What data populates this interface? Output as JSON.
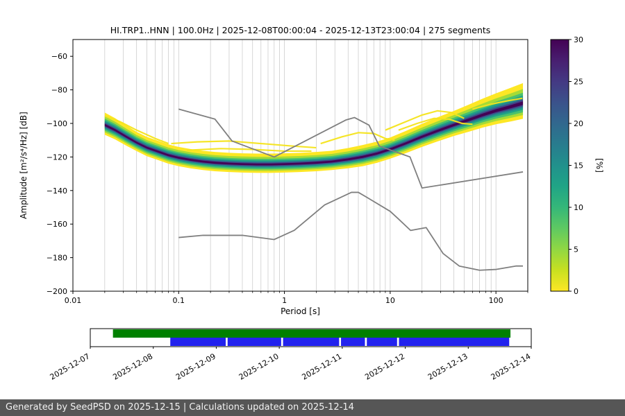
{
  "window": {
    "title": "HI.TRP1..HNN | 100.0Hz | 2025-12-08T00:00:04 - 2025-12-13T23:00:04 | 275 segments"
  },
  "footer": {
    "text": "Generated by SeedPSD on 2025-12-15 | Calculations updated on 2025-12-14"
  },
  "chart_data": {
    "type": "heatmap",
    "title": "HI.TRP1..HNN | 100.0Hz | 2025-12-08T00:00:04 - 2025-12-13T23:00:04 | 275 segments",
    "xlabel": "Period [s]",
    "ylabel": "Amplitude [m²/s⁴/Hz] [dB]",
    "xscale": "log",
    "xlim": [
      0.01,
      200
    ],
    "ylim": [
      -200,
      -50
    ],
    "xticks": [
      0.01,
      0.1,
      1,
      10,
      100
    ],
    "xtick_labels": [
      "0.01",
      "0.1",
      "1",
      "10",
      "100"
    ],
    "yticks": [
      -60,
      -80,
      -100,
      -120,
      -140,
      -160,
      -180,
      -200
    ],
    "grid": "vertical-log",
    "colorbar": {
      "label": "[%]",
      "min": 0,
      "max": 30,
      "ticks": [
        0,
        5,
        10,
        15,
        20,
        25,
        30
      ],
      "gradient": [
        "#fde725",
        "#c8e020",
        "#90d743",
        "#5ec962",
        "#35b779",
        "#20a486",
        "#21918c",
        "#287c8e",
        "#31688e",
        "#3b528b",
        "#443983",
        "#481f70",
        "#440154"
      ]
    },
    "ppsd": {
      "periods": [
        0.02,
        0.025,
        0.032,
        0.04,
        0.05,
        0.065,
        0.08,
        0.1,
        0.13,
        0.17,
        0.22,
        0.3,
        0.4,
        0.55,
        0.75,
        1.0,
        1.4,
        2.0,
        2.8,
        4.0,
        5.5,
        7.5,
        10,
        14,
        20,
        28,
        40,
        55,
        75,
        100,
        140,
        180
      ],
      "mode_db": [
        -101,
        -104,
        -108,
        -111.5,
        -114.5,
        -117,
        -119,
        -120.5,
        -121.8,
        -122.8,
        -123.5,
        -124,
        -124.3,
        -124.5,
        -124.5,
        -124.3,
        -124,
        -123.5,
        -122.8,
        -121.5,
        -120,
        -118,
        -115.5,
        -112,
        -108,
        -104.5,
        -101,
        -98,
        -95,
        -92.5,
        -90,
        -88
      ],
      "spread": [
        1.15,
        1.1,
        1.05,
        1.0,
        1.0,
        1.0,
        1.0,
        1.0,
        1.0,
        1.0,
        1.0,
        1.0,
        1.0,
        1.0,
        1.0,
        1.0,
        1.0,
        1.0,
        1.0,
        1.05,
        1.1,
        1.1,
        1.1,
        1.15,
        1.2,
        1.25,
        1.3,
        1.4,
        1.5,
        1.6,
        1.75,
        1.85
      ],
      "layers": [
        {
          "color": "#fde725",
          "top": 6.5,
          "bottom": 5.0
        },
        {
          "color": "#a5db36",
          "top": 4.6,
          "bottom": 3.8
        },
        {
          "color": "#4ac16d",
          "top": 3.4,
          "bottom": 2.9
        },
        {
          "color": "#1fa187",
          "top": 2.5,
          "bottom": 2.1
        },
        {
          "color": "#277f8e",
          "top": 1.8,
          "bottom": 1.5
        },
        {
          "color": "#414487",
          "top": 1.15,
          "bottom": 0.95
        },
        {
          "color": "#440154",
          "top": 0.6,
          "bottom": 0.5
        }
      ],
      "outlier_color": "#f4e41c",
      "outlier_curves": [
        [
          [
            0.02,
            -95.5
          ],
          [
            0.028,
            -99
          ],
          [
            0.04,
            -104
          ],
          [
            0.06,
            -109
          ],
          [
            0.08,
            -112
          ]
        ],
        [
          [
            0.085,
            -112
          ],
          [
            0.15,
            -111
          ],
          [
            0.3,
            -110.5
          ],
          [
            0.6,
            -112
          ],
          [
            1.2,
            -113.5
          ],
          [
            2.0,
            -114.5
          ]
        ],
        [
          [
            0.12,
            -116
          ],
          [
            0.25,
            -115
          ],
          [
            0.5,
            -115.5
          ],
          [
            1.0,
            -116.5
          ],
          [
            1.8,
            -116.5
          ]
        ],
        [
          [
            2.2,
            -112
          ],
          [
            3.5,
            -108
          ],
          [
            5.0,
            -105.5
          ],
          [
            7.0,
            -106
          ],
          [
            9.0,
            -109
          ],
          [
            11,
            -110
          ]
        ],
        [
          [
            9,
            -104
          ],
          [
            14,
            -99
          ],
          [
            20,
            -95
          ],
          [
            28,
            -92.5
          ],
          [
            38,
            -93.5
          ],
          [
            50,
            -97
          ]
        ],
        [
          [
            12,
            -104
          ],
          [
            18,
            -100
          ],
          [
            26,
            -97
          ],
          [
            36,
            -97.5
          ],
          [
            48,
            -100
          ],
          [
            60,
            -100.5
          ]
        ],
        [
          [
            60,
            -91.5
          ],
          [
            90,
            -88.5
          ],
          [
            130,
            -86.5
          ],
          [
            178,
            -85
          ]
        ]
      ]
    },
    "noise_models": {
      "color": "#7f7f7f",
      "nhnm": [
        [
          0.1,
          -91.5
        ],
        [
          0.22,
          -97.4
        ],
        [
          0.32,
          -110.5
        ],
        [
          0.8,
          -120.0
        ],
        [
          3.8,
          -98.0
        ],
        [
          4.6,
          -96.5
        ],
        [
          6.3,
          -101.0
        ],
        [
          7.9,
          -113.5
        ],
        [
          15.4,
          -120.0
        ],
        [
          20.0,
          -138.5
        ],
        [
          180,
          -128.9
        ]
      ],
      "nlnm": [
        [
          0.1,
          -168.0
        ],
        [
          0.17,
          -166.7
        ],
        [
          0.4,
          -166.7
        ],
        [
          0.8,
          -169.2
        ],
        [
          1.24,
          -163.7
        ],
        [
          2.4,
          -148.6
        ],
        [
          4.3,
          -141.1
        ],
        [
          5.0,
          -141.1
        ],
        [
          6.0,
          -144.0
        ],
        [
          10.0,
          -152.4
        ],
        [
          12.0,
          -157.0
        ],
        [
          15.6,
          -163.8
        ],
        [
          21.9,
          -162.1
        ],
        [
          31.6,
          -177.5
        ],
        [
          45.0,
          -185.0
        ],
        [
          70.0,
          -187.5
        ],
        [
          101.0,
          -187.0
        ],
        [
          154.0,
          -185.0
        ],
        [
          180,
          -185.0
        ]
      ]
    },
    "timeline": {
      "labels": [
        "2025-12-07",
        "2025-12-08",
        "2025-12-09",
        "2025-12-10",
        "2025-12-11",
        "2025-12-12",
        "2025-12-13",
        "2025-12-14"
      ],
      "range_days": 7,
      "green_color": "#008000",
      "blue_color": "#2222ee",
      "green_segments": [
        [
          0.36,
          6.67
        ]
      ],
      "blue_segments": [
        [
          1.27,
          2.15
        ],
        [
          2.18,
          3.03
        ],
        [
          3.06,
          3.95
        ],
        [
          3.98,
          4.36
        ],
        [
          4.39,
          4.87
        ],
        [
          4.9,
          6.65
        ]
      ]
    }
  }
}
